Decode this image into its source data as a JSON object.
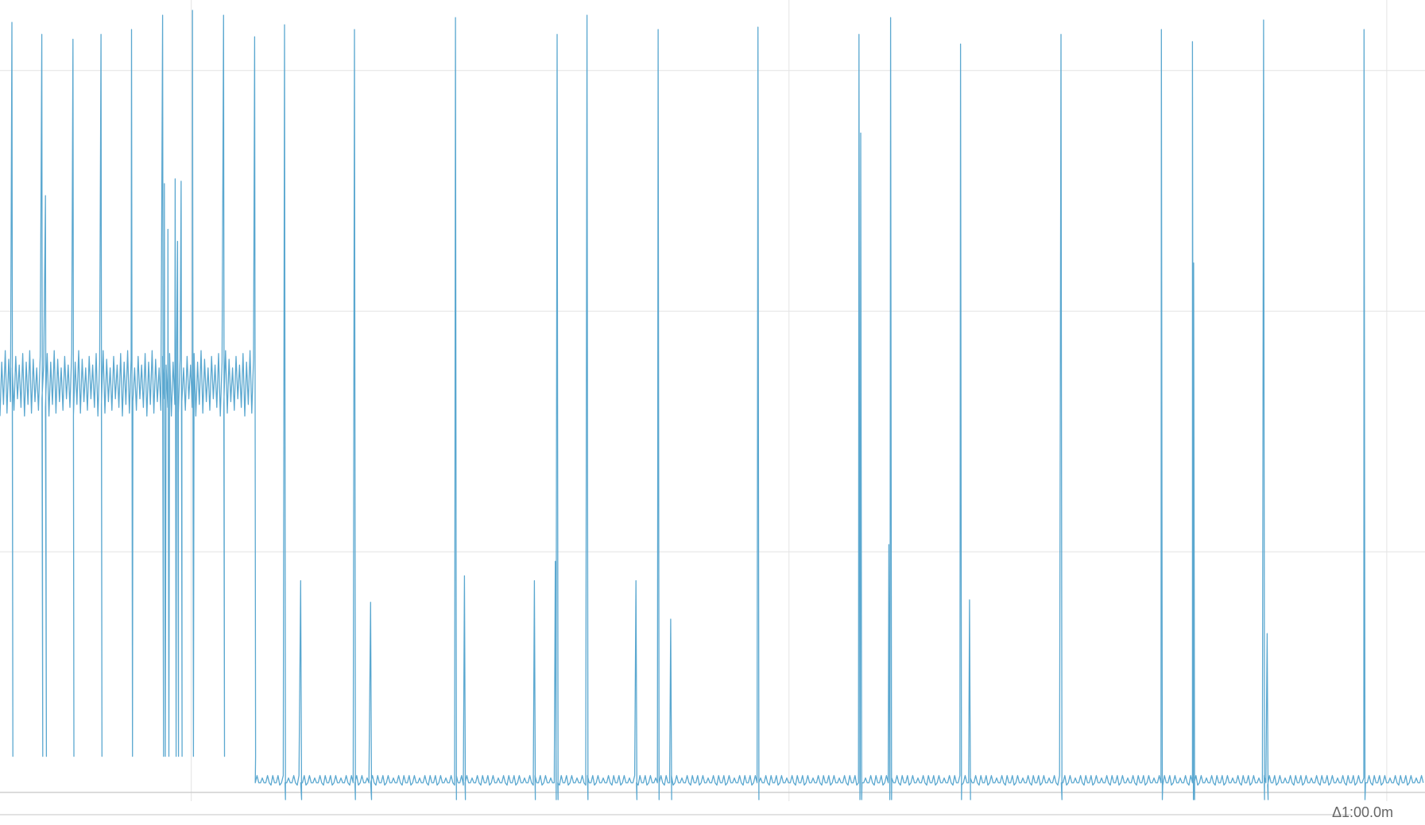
{
  "chart_data": {
    "type": "line",
    "title": "",
    "xlabel": "",
    "ylabel": "",
    "x_unit": "minutes",
    "xlim": [
      0,
      2.384
    ],
    "ylim": [
      0,
      3.26
    ],
    "grid": true,
    "x_gridlines": [
      0.32,
      1.32,
      2.32
    ],
    "y_gridlines": [
      1,
      2,
      3
    ],
    "line_color": "#5ba8d0",
    "noise_segment": {
      "x_start": 0,
      "x_end": 0.426,
      "low": 1.6,
      "high": 1.8,
      "dip": 0.15
    },
    "baseline": {
      "x_start": 0.426,
      "x_end": 2.384,
      "value": 0.04,
      "ripple": 0.03
    },
    "spikes": [
      {
        "x": 0.02,
        "peak": 3.2
      },
      {
        "x": 0.07,
        "peak": 3.15
      },
      {
        "x": 0.076,
        "peak": 2.48
      },
      {
        "x": 0.122,
        "peak": 3.13
      },
      {
        "x": 0.169,
        "peak": 3.15
      },
      {
        "x": 0.22,
        "peak": 3.17
      },
      {
        "x": 0.272,
        "peak": 3.23
      },
      {
        "x": 0.275,
        "peak": 2.53
      },
      {
        "x": 0.281,
        "peak": 2.34
      },
      {
        "x": 0.293,
        "peak": 2.55
      },
      {
        "x": 0.297,
        "peak": 2.29
      },
      {
        "x": 0.303,
        "peak": 2.54
      },
      {
        "x": 0.322,
        "peak": 3.25
      },
      {
        "x": 0.374,
        "peak": 3.23
      },
      {
        "x": 0.426,
        "peak": 3.14
      },
      {
        "x": 0.476,
        "peak": 3.19
      },
      {
        "x": 0.503,
        "peak": 0.88
      },
      {
        "x": 0.593,
        "peak": 3.17
      },
      {
        "x": 0.62,
        "peak": 0.79
      },
      {
        "x": 0.762,
        "peak": 3.22
      },
      {
        "x": 0.777,
        "peak": 0.9
      },
      {
        "x": 0.894,
        "peak": 0.88
      },
      {
        "x": 0.929,
        "peak": 0.96
      },
      {
        "x": 0.932,
        "peak": 3.15
      },
      {
        "x": 0.982,
        "peak": 3.23
      },
      {
        "x": 1.064,
        "peak": 0.88
      },
      {
        "x": 1.101,
        "peak": 3.17
      },
      {
        "x": 1.122,
        "peak": 0.72
      },
      {
        "x": 1.268,
        "peak": 3.18
      },
      {
        "x": 1.437,
        "peak": 3.15
      },
      {
        "x": 1.44,
        "peak": 2.74
      },
      {
        "x": 1.487,
        "peak": 1.03
      },
      {
        "x": 1.49,
        "peak": 3.22
      },
      {
        "x": 1.607,
        "peak": 3.11
      },
      {
        "x": 1.622,
        "peak": 0.8
      },
      {
        "x": 1.775,
        "peak": 3.15
      },
      {
        "x": 1.943,
        "peak": 3.17
      },
      {
        "x": 1.995,
        "peak": 3.12
      },
      {
        "x": 1.997,
        "peak": 2.2
      },
      {
        "x": 2.114,
        "peak": 3.21
      },
      {
        "x": 2.12,
        "peak": 0.66
      },
      {
        "x": 2.282,
        "peak": 3.17
      }
    ],
    "annotation": "Δ1:00.0m"
  }
}
